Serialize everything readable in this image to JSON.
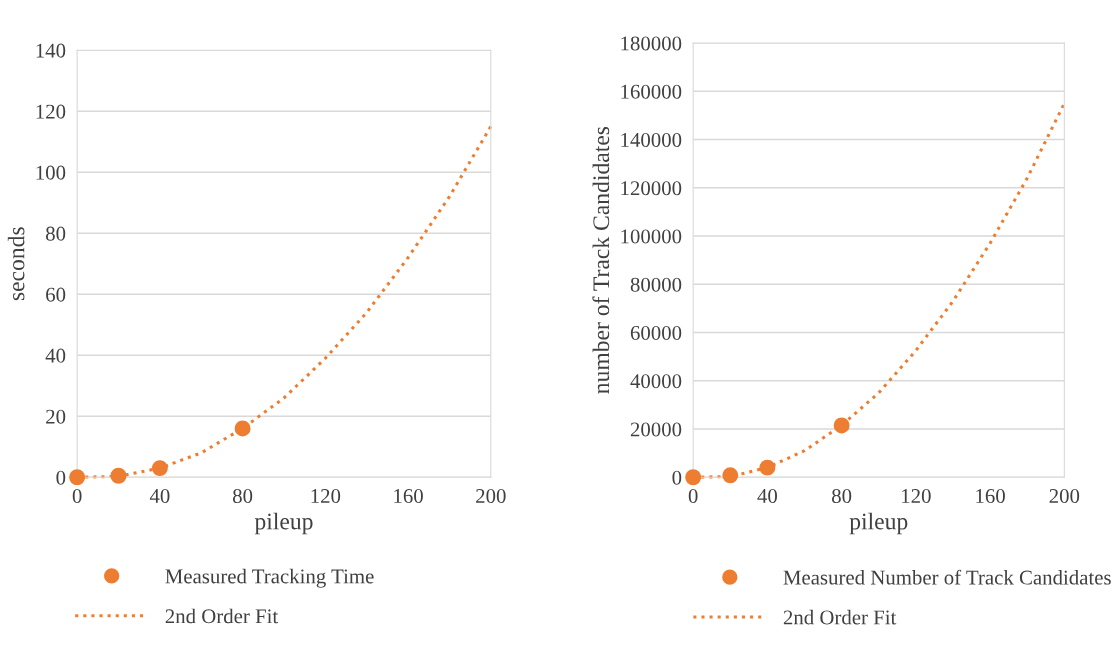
{
  "chart_data": [
    {
      "type": "scatter",
      "xlabel": "pileup",
      "ylabel": "seconds",
      "xlim": [
        0,
        200
      ],
      "xticks": [
        0,
        40,
        80,
        120,
        160,
        200
      ],
      "ylim": [
        0,
        140
      ],
      "yticks": [
        0,
        20,
        40,
        60,
        80,
        100,
        120,
        140
      ],
      "grid": "y",
      "legend": "bottom",
      "series": [
        {
          "name": "Measured Tracking Time",
          "color": "#ed7d31",
          "marker": "circle",
          "x": [
            0,
            20,
            40,
            80
          ],
          "values": [
            0,
            0.5,
            3,
            16
          ]
        },
        {
          "name": "2nd Order Fit",
          "type": "line",
          "color": "#ed7d31",
          "line_style": "dotted",
          "marker": "none",
          "x": [
            0,
            20,
            40,
            60,
            80,
            100,
            120,
            140,
            160,
            180,
            200
          ],
          "values": [
            0,
            0.3,
            3,
            8,
            16,
            26,
            39,
            54,
            72,
            92,
            115
          ]
        }
      ]
    },
    {
      "type": "scatter",
      "xlabel": "pileup",
      "ylabel": "number of Track Candidates",
      "xlim": [
        0,
        200
      ],
      "xticks": [
        0,
        40,
        80,
        120,
        160,
        200
      ],
      "ylim": [
        0,
        180000
      ],
      "yticks": [
        0,
        20000,
        40000,
        60000,
        80000,
        100000,
        120000,
        140000,
        160000,
        180000
      ],
      "grid": "y",
      "legend": "bottom",
      "series": [
        {
          "name": "Measured Number of Track Candidates",
          "color": "#ed7d31",
          "marker": "circle",
          "x": [
            0,
            20,
            40,
            80
          ],
          "values": [
            0,
            800,
            4000,
            21500
          ]
        },
        {
          "name": "2nd Order Fit",
          "type": "line",
          "color": "#ed7d31",
          "line_style": "dotted",
          "marker": "none",
          "x": [
            0,
            20,
            40,
            60,
            80,
            100,
            120,
            140,
            160,
            180,
            200
          ],
          "values": [
            0,
            300,
            4000,
            11000,
            21500,
            35000,
            52500,
            73000,
            97000,
            124000,
            155000
          ]
        }
      ]
    }
  ]
}
